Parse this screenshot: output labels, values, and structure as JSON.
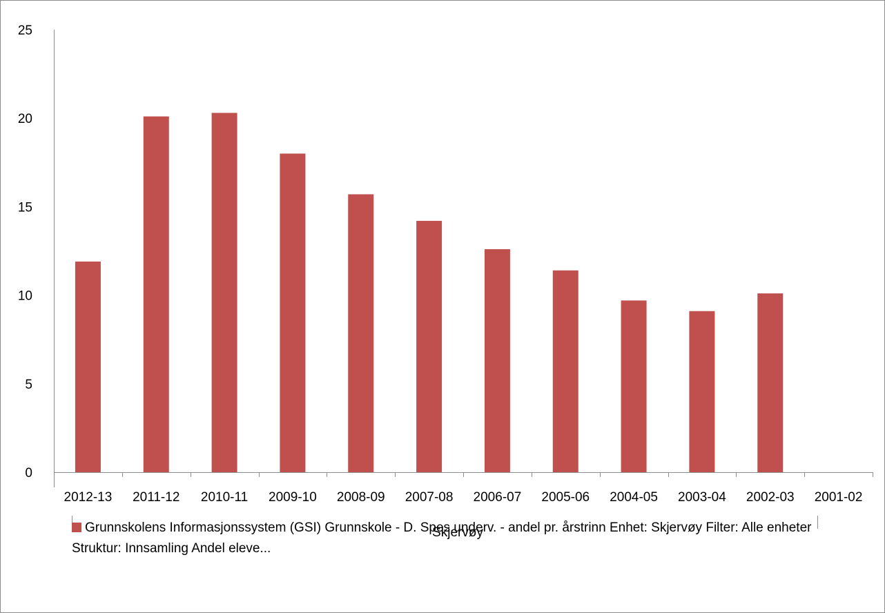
{
  "chart_data": {
    "type": "bar",
    "categories": [
      "2012-13",
      "2011-12",
      "2010-11",
      "2009-10",
      "2008-09",
      "2007-08",
      "2006-07",
      "2005-06",
      "2004-05",
      "2003-04",
      "2002-03",
      "2001-02"
    ],
    "series": [
      {
        "name": "Grunnskolens Informasjonssystem (GSI) Grunnskole - D. Spes.underv. - andel pr. årstrinn Enhet: Skjervøy Filter: Alle enheter Struktur: Innsamling Andel eleve...",
        "color": "#c0504d",
        "values": [
          11.9,
          20.1,
          20.3,
          18.0,
          15.7,
          14.2,
          12.6,
          11.4,
          9.7,
          9.1,
          10.1,
          null
        ]
      }
    ],
    "y_ticks": [
      0,
      5,
      10,
      15,
      20,
      25
    ],
    "ylim": [
      0,
      25
    ],
    "xlabel": "Skjervøy",
    "ylabel": "",
    "title": "",
    "grid": false,
    "legend_position": "bottom"
  }
}
